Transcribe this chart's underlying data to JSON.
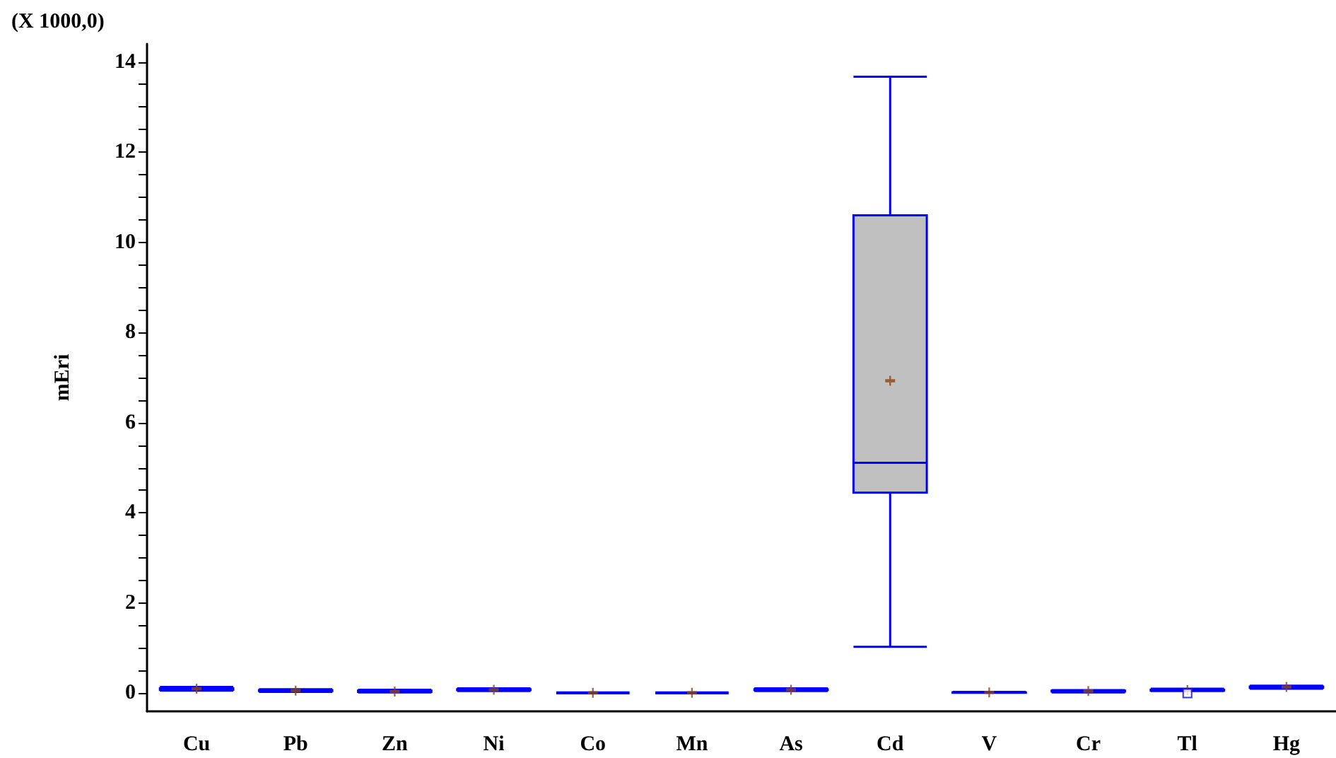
{
  "chart_data": {
    "type": "box",
    "ylabel": "mEri",
    "annotations": [
      "(X 1000,0)"
    ],
    "categories": [
      "Cu",
      "Pb",
      "Zn",
      "Ni",
      "Co",
      "Mn",
      "As",
      "Cd",
      "V",
      "Cr",
      "Tl",
      "Hg"
    ],
    "color": "#0000ff",
    "boxes": [
      {
        "low": 0.06,
        "q1": 0.08,
        "median": 0.09,
        "q3": 0.11,
        "high": 0.14,
        "mean": 0.1
      },
      {
        "low": 0.03,
        "q1": 0.05,
        "median": 0.06,
        "q3": 0.07,
        "high": 0.09,
        "mean": 0.06
      },
      {
        "low": 0.02,
        "q1": 0.03,
        "median": 0.04,
        "q3": 0.06,
        "high": 0.08,
        "mean": 0.04
      },
      {
        "low": 0.05,
        "q1": 0.07,
        "median": 0.08,
        "q3": 0.09,
        "high": 0.11,
        "mean": 0.08
      },
      {
        "low": 0.0,
        "q1": 0.01,
        "median": 0.01,
        "q3": 0.01,
        "high": 0.02,
        "mean": 0.01
      },
      {
        "low": 0.0,
        "q1": 0.01,
        "median": 0.01,
        "q3": 0.01,
        "high": 0.02,
        "mean": 0.01
      },
      {
        "low": 0.05,
        "q1": 0.07,
        "median": 0.08,
        "q3": 0.09,
        "high": 0.11,
        "mean": 0.08
      },
      {
        "low": 1.03,
        "q1": 4.45,
        "median": 5.11,
        "q3": 10.6,
        "high": 13.67,
        "mean": 6.93
      },
      {
        "low": 0.01,
        "q1": 0.01,
        "median": 0.02,
        "q3": 0.02,
        "high": 0.03,
        "mean": 0.02
      },
      {
        "low": 0.02,
        "q1": 0.04,
        "median": 0.05,
        "q3": 0.06,
        "high": 0.07,
        "mean": 0.05
      },
      {
        "low": 0.05,
        "q1": 0.06,
        "median": 0.07,
        "q3": 0.08,
        "high": 0.1,
        "mean": 0.07,
        "outliers": [
          0.0
        ]
      },
      {
        "low": 0.1,
        "q1": 0.12,
        "median": 0.13,
        "q3": 0.15,
        "high": 0.17,
        "mean": 0.14
      }
    ],
    "ylim": [
      -0.4,
      14.4
    ],
    "yticks": [
      0,
      {
        "value": 0.5,
        "label": null
      },
      2,
      {
        "value": 1,
        "label": null
      },
      {
        "value": 1.5,
        "label": null
      },
      {
        "value": 2.5,
        "label": null
      },
      {
        "value": 3,
        "label": null
      },
      {
        "value": 3.5,
        "label": null
      },
      4,
      {
        "value": 4.5,
        "label": null
      },
      {
        "value": 5,
        "label": null
      },
      {
        "value": 5.5,
        "label": null
      },
      6,
      {
        "value": 6.5,
        "label": null
      },
      {
        "value": 7,
        "label": null
      },
      {
        "value": 7.5,
        "label": null
      },
      8,
      {
        "value": 8.5,
        "label": null
      },
      {
        "value": 9,
        "label": null
      },
      {
        "value": 9.5,
        "label": null
      },
      10,
      {
        "value": 10.5,
        "label": null
      },
      {
        "value": 11,
        "label": null
      },
      {
        "value": 11.5,
        "label": null
      },
      12,
      {
        "value": 12.5,
        "label": null
      },
      {
        "value": 13,
        "label": null
      },
      {
        "value": 13.5,
        "label": null
      },
      14
    ],
    "grid": false
  }
}
